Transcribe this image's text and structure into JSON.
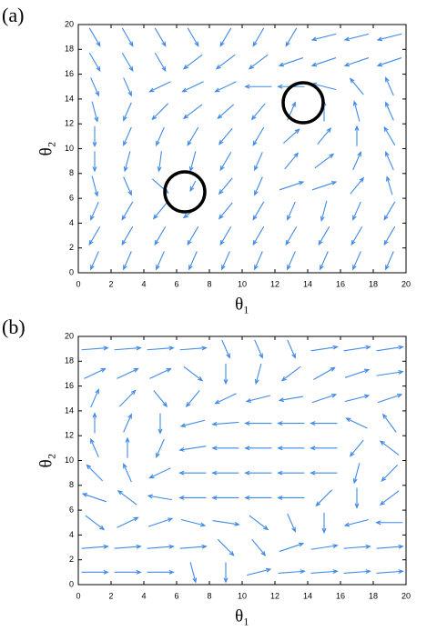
{
  "chart_data": [
    {
      "type": "quiver",
      "label": "(a)",
      "xlabel": "θ₁",
      "ylabel": "θ₂",
      "color": "#3f8ae6",
      "xlim": [
        0,
        20
      ],
      "ylim": [
        0,
        20
      ],
      "xticks": [
        0,
        2,
        4,
        6,
        8,
        10,
        12,
        14,
        16,
        18,
        20
      ],
      "yticks": [
        0,
        2,
        4,
        6,
        8,
        10,
        12,
        14,
        16,
        18,
        20
      ],
      "x": [
        1,
        3,
        5,
        7,
        9,
        11,
        13,
        15,
        17,
        19
      ],
      "y": [
        1,
        3,
        5,
        7,
        9,
        11,
        13,
        15,
        17,
        19
      ],
      "u": [
        [
          -0.3,
          -0.3,
          -0.3,
          -0.3,
          -0.3,
          -0.3,
          -0.3,
          -0.3,
          -0.3,
          -0.3
        ],
        [
          -0.4,
          -0.4,
          -0.4,
          -0.4,
          -0.4,
          -0.4,
          -0.4,
          -0.4,
          -0.4,
          -0.4
        ],
        [
          -0.3,
          -0.4,
          -0.5,
          -0.7,
          -0.5,
          -0.4,
          -0.3,
          -0.2,
          -0.3,
          -0.4
        ],
        [
          0.2,
          0.3,
          0.6,
          -0.2,
          -0.5,
          -0.3,
          0.9,
          0.9,
          0.5,
          -0.2
        ],
        [
          0,
          -0.2,
          -0.1,
          -0.2,
          -0.4,
          -0.3,
          0.5,
          0.7,
          0.3,
          -0.3
        ],
        [
          0,
          -0.3,
          -0.3,
          -0.4,
          -0.5,
          -0.4,
          0.6,
          0.5,
          0,
          -0.4
        ],
        [
          0.2,
          -0.3,
          -0.6,
          -0.7,
          -0.6,
          -0.5,
          0.3,
          0,
          -0.2,
          -0.3
        ],
        [
          0.3,
          0.3,
          -0.8,
          -0.8,
          -0.8,
          -1,
          -1,
          -0.9,
          -0.5,
          -0.3
        ],
        [
          0.4,
          0.4,
          0.4,
          -0.7,
          -0.7,
          -0.7,
          -0.9,
          -0.9,
          -0.9,
          -0.9
        ],
        [
          0.4,
          0.4,
          0.4,
          0.4,
          -0.4,
          -0.4,
          -0.4,
          -0.9,
          -0.9,
          -0.9
        ]
      ],
      "v": [
        [
          -0.9,
          -0.9,
          -0.9,
          -0.9,
          -0.9,
          -0.9,
          -0.9,
          -0.9,
          -0.9,
          -0.9
        ],
        [
          -0.9,
          -0.9,
          -0.9,
          -0.9,
          -0.9,
          -0.9,
          -0.9,
          -0.9,
          -0.9,
          -0.9
        ],
        [
          -0.9,
          -0.9,
          -0.8,
          -0.7,
          -0.8,
          -0.9,
          -0.9,
          -1,
          -0.9,
          -0.9
        ],
        [
          -1,
          -0.9,
          -0.7,
          -0.5,
          -0.8,
          -0.9,
          0.4,
          0.4,
          0.8,
          0.9
        ],
        [
          -1,
          -1,
          -1,
          -1,
          -0.9,
          -0.9,
          0.8,
          0.7,
          0.9,
          0.9
        ],
        [
          -1,
          -0.9,
          -0.9,
          -0.9,
          -0.8,
          -0.9,
          0.7,
          0.8,
          1,
          0.9
        ],
        [
          -1,
          -0.9,
          -0.8,
          -0.7,
          -0.7,
          -0.8,
          0.9,
          1,
          1,
          0.9
        ],
        [
          -0.9,
          -0.9,
          -0.5,
          -0.5,
          -0.5,
          0,
          0,
          0.3,
          0.8,
          0.9
        ],
        [
          -0.9,
          -0.9,
          -0.9,
          -0.7,
          -0.7,
          -0.7,
          -0.4,
          -0.4,
          -0.4,
          -0.4
        ],
        [
          -0.9,
          -0.9,
          -0.9,
          -0.9,
          -0.9,
          -0.9,
          -0.9,
          -0.3,
          -0.3,
          -0.3
        ]
      ]
    },
    {
      "type": "quiver",
      "label": "(b)",
      "xlabel": "θ₁",
      "ylabel": "θ₂",
      "color": "#3f8ae6",
      "xlim": [
        0,
        20
      ],
      "ylim": [
        0,
        20
      ],
      "xticks": [
        0,
        2,
        4,
        6,
        8,
        10,
        12,
        14,
        16,
        18,
        20
      ],
      "yticks": [
        0,
        2,
        4,
        6,
        8,
        10,
        12,
        14,
        16,
        18,
        20
      ],
      "x": [
        1,
        3,
        5,
        7,
        9,
        11,
        13,
        15,
        17,
        19
      ],
      "y": [
        1,
        3,
        5,
        7,
        9,
        11,
        13,
        15,
        17,
        19
      ],
      "u": [
        [
          1,
          1,
          1,
          0.2,
          0,
          0.9,
          1,
          1,
          1,
          1
        ],
        [
          1,
          1,
          1,
          1,
          0.6,
          0.5,
          0.9,
          1,
          1,
          1
        ],
        [
          0.7,
          0.8,
          0.9,
          0.9,
          1,
          0.7,
          0.3,
          0,
          -0.9,
          -1
        ],
        [
          -0.9,
          -0.7,
          -0.9,
          -1,
          -1,
          -1,
          -1,
          -0.6,
          0,
          -0.7
        ],
        [
          -0.6,
          -0.3,
          -0.8,
          -1,
          -1,
          -1,
          -1,
          -1,
          -0.2,
          -0.6
        ],
        [
          -0.3,
          0,
          -0.3,
          -1,
          -1,
          -1,
          -1,
          -1,
          -0.5,
          -0.7
        ],
        [
          0,
          0.3,
          0,
          -0.9,
          -1,
          -1,
          -1,
          -1,
          -0.8,
          -0.5
        ],
        [
          0.3,
          0.6,
          0.5,
          -0.5,
          -0.8,
          -0.9,
          -0.9,
          0.9,
          0.9,
          0.9
        ],
        [
          0.8,
          0.8,
          0.8,
          0.7,
          0,
          -0.2,
          -0.7,
          0.8,
          0.9,
          1
        ],
        [
          1,
          1,
          1,
          1,
          0.3,
          0.3,
          0.3,
          1,
          1,
          1
        ]
      ],
      "v": [
        [
          0,
          0,
          0,
          -1,
          -1,
          0.3,
          0.1,
          0.1,
          0.1,
          0.1
        ],
        [
          0.1,
          0.1,
          0.1,
          0.1,
          -0.8,
          -0.8,
          0.4,
          0.2,
          0.1,
          0.1
        ],
        [
          -0.7,
          0.5,
          0.4,
          -0.3,
          -0.2,
          -0.7,
          -0.9,
          -1,
          -0.3,
          0
        ],
        [
          0.4,
          0.7,
          0.2,
          0,
          0,
          0,
          0,
          -0.8,
          -1,
          -0.7
        ],
        [
          0.8,
          0.9,
          -0.5,
          0,
          0,
          0,
          0,
          0,
          -1,
          -0.8
        ],
        [
          0.9,
          1,
          -0.9,
          -0.2,
          0,
          0,
          0,
          0,
          -0.8,
          0.7
        ],
        [
          1,
          0.9,
          -1,
          -0.3,
          -0.1,
          0,
          0,
          0,
          0.5,
          0.9
        ],
        [
          0.9,
          0.8,
          -0.8,
          -0.8,
          -0.5,
          -0.3,
          -0.2,
          0.4,
          0.3,
          0.4
        ],
        [
          0.5,
          0.5,
          0.5,
          -0.7,
          -1,
          -1,
          -0.7,
          0.6,
          0.4,
          0.2
        ],
        [
          0.1,
          0.1,
          0.1,
          0.1,
          -0.9,
          -0.9,
          -0.9,
          0.2,
          0.2,
          0.2
        ]
      ]
    }
  ]
}
